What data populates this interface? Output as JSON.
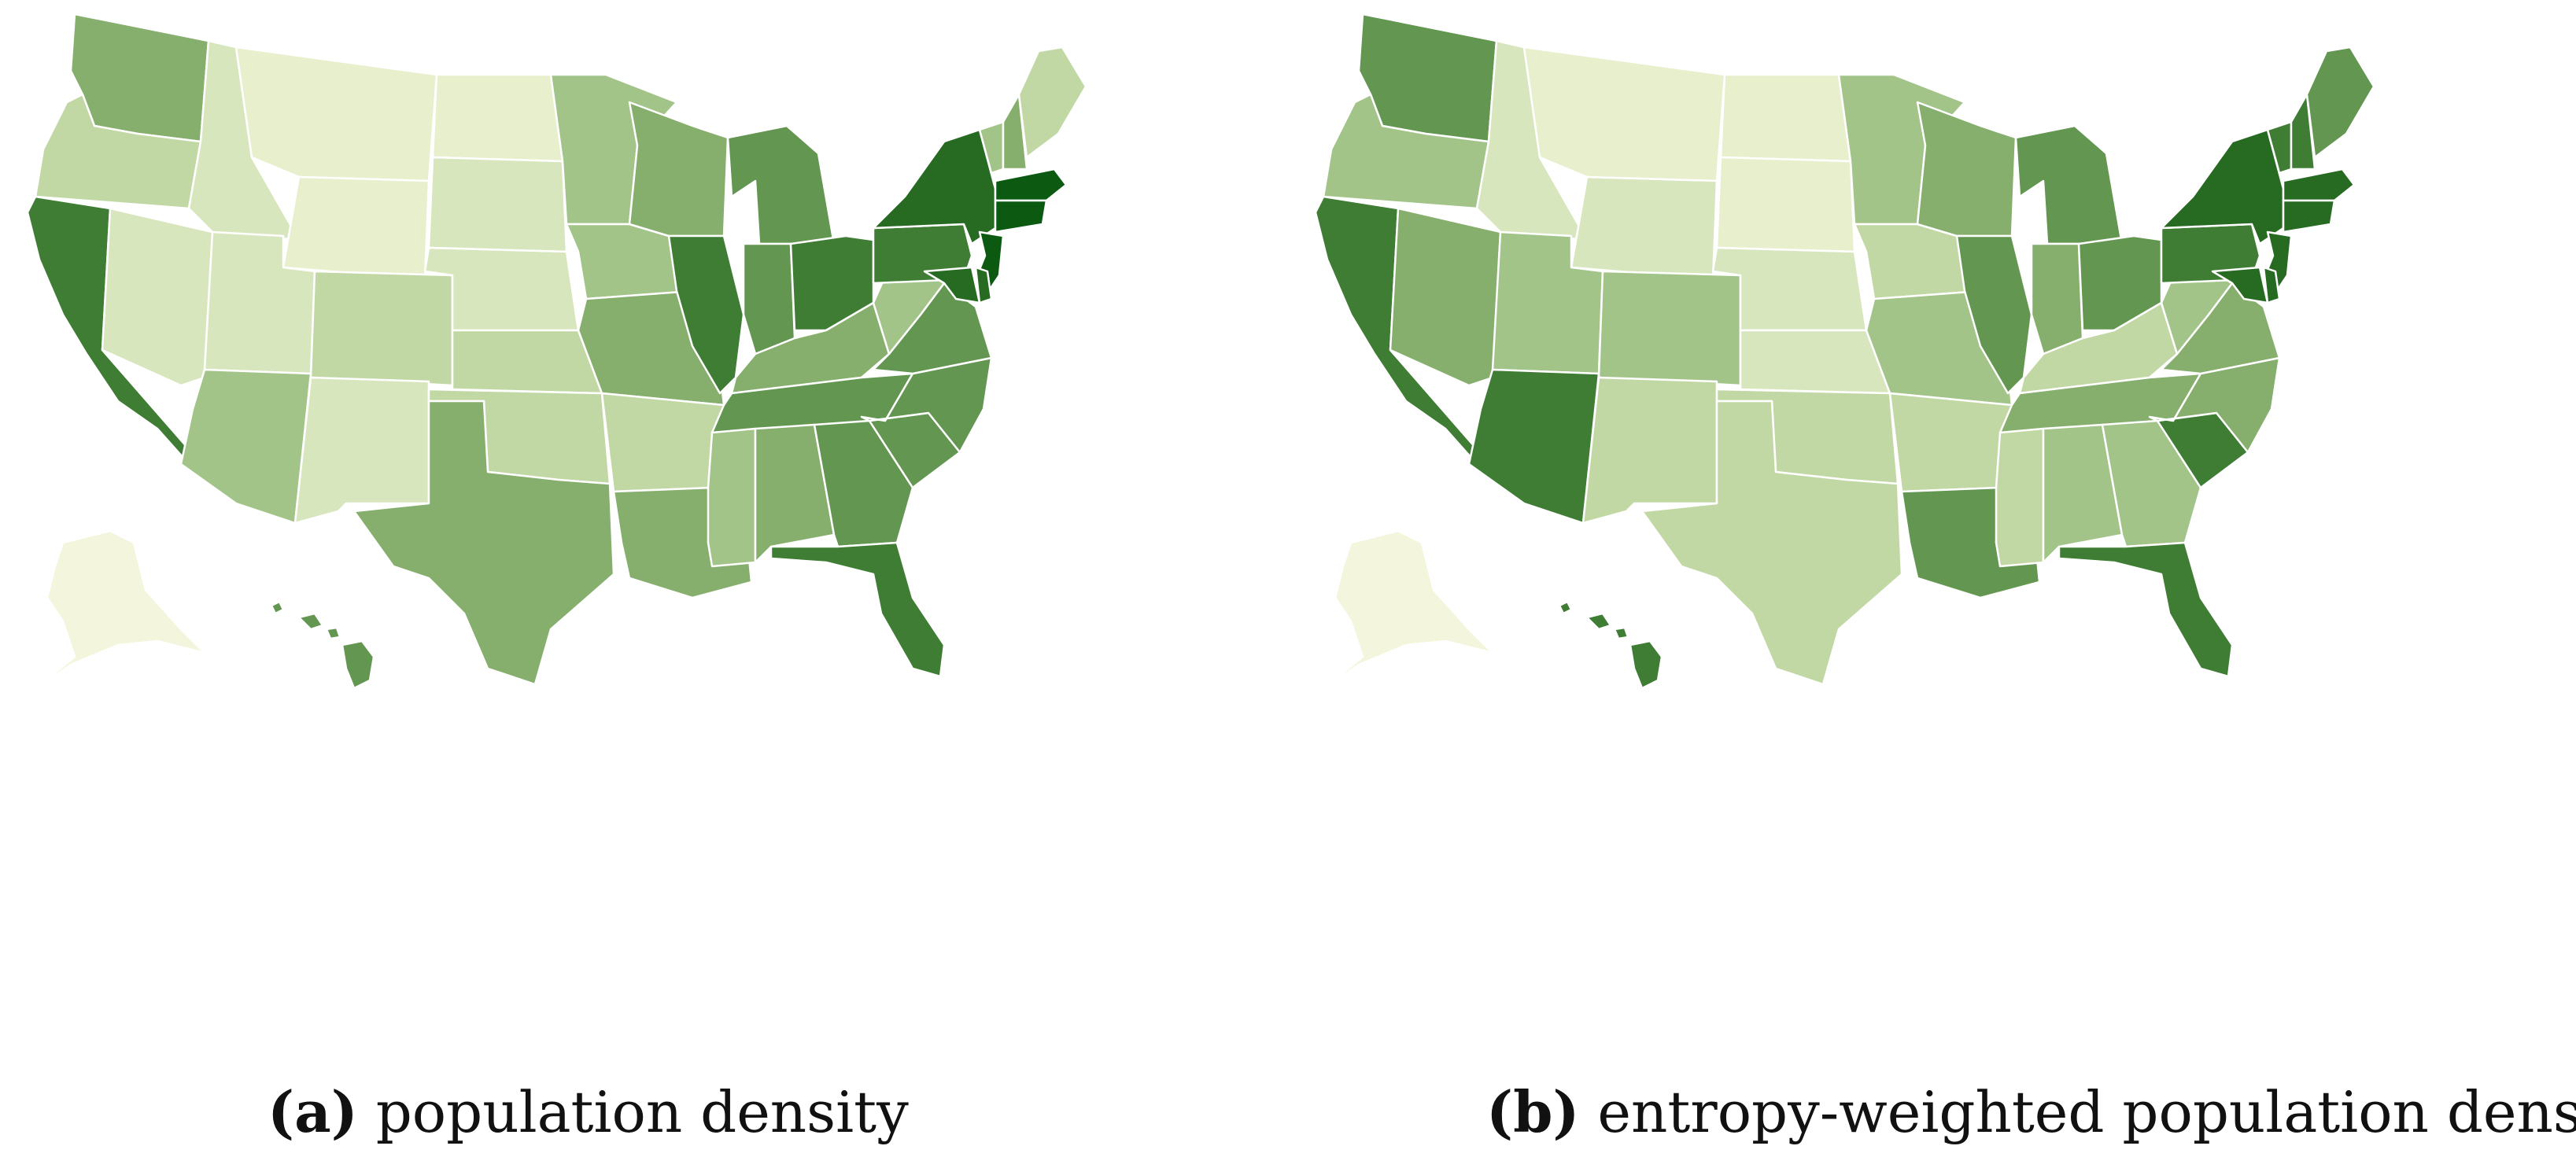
{
  "colors": {
    "c1": "#f3f6dc",
    "c2": "#e7efcc",
    "c3": "#d8e6bd",
    "c4": "#c2d8a4",
    "c5": "#a3c489",
    "c6": "#86ae6c",
    "c7": "#639650",
    "c8": "#3f7c34",
    "c9": "#276a22",
    "c10": "#0c5a12"
  },
  "panels": [
    {
      "caption_tag": "(a)",
      "caption_text": "population density",
      "states": {
        "WA": "c6",
        "OR": "c4",
        "CA": "c8",
        "ID": "c3",
        "NV": "c3",
        "MT": "c2",
        "WY": "c2",
        "UT": "c3",
        "AZ": "c5",
        "CO": "c4",
        "NM": "c3",
        "ND": "c2",
        "SD": "c3",
        "NE": "c3",
        "KS": "c4",
        "OK": "c4",
        "TX": "c6",
        "MN": "c5",
        "IA": "c5",
        "MO": "c6",
        "AR": "c4",
        "LA": "c6",
        "WI": "c6",
        "IL": "c8",
        "MI": "c7",
        "IN": "c7",
        "OH": "c8",
        "KY": "c6",
        "TN": "c7",
        "MS": "c5",
        "AL": "c6",
        "GA": "c7",
        "FL": "c8",
        "SC": "c7",
        "NC": "c7",
        "VA": "c7",
        "WV": "c5",
        "PA": "c8",
        "NY": "c9",
        "VT": "c5",
        "NH": "c6",
        "ME": "c4",
        "MA": "c10",
        "CT": "c10",
        "NJ": "c10",
        "MD": "c9",
        "DE": "c9",
        "AK": "c1",
        "HI": "c7"
      }
    },
    {
      "caption_tag": "(b)",
      "caption_text": "entropy-weighted population density",
      "states": {
        "WA": "c7",
        "OR": "c5",
        "CA": "c8",
        "ID": "c3",
        "NV": "c6",
        "MT": "c2",
        "WY": "c3",
        "UT": "c5",
        "AZ": "c8",
        "CO": "c5",
        "NM": "c4",
        "ND": "c2",
        "SD": "c2",
        "NE": "c3",
        "KS": "c3",
        "OK": "c4",
        "TX": "c4",
        "MN": "c5",
        "IA": "c4",
        "MO": "c5",
        "AR": "c4",
        "LA": "c7",
        "WI": "c6",
        "IL": "c7",
        "MI": "c7",
        "IN": "c6",
        "OH": "c7",
        "KY": "c4",
        "TN": "c6",
        "MS": "c4",
        "AL": "c5",
        "GA": "c5",
        "FL": "c8",
        "SC": "c8",
        "NC": "c6",
        "VA": "c6",
        "WV": "c5",
        "PA": "c8",
        "NY": "c9",
        "VT": "c8",
        "NH": "c8",
        "ME": "c7",
        "MA": "c9",
        "CT": "c9",
        "NJ": "c9",
        "MD": "c9",
        "DE": "c9",
        "AK": "c1",
        "HI": "c8"
      }
    }
  ]
}
